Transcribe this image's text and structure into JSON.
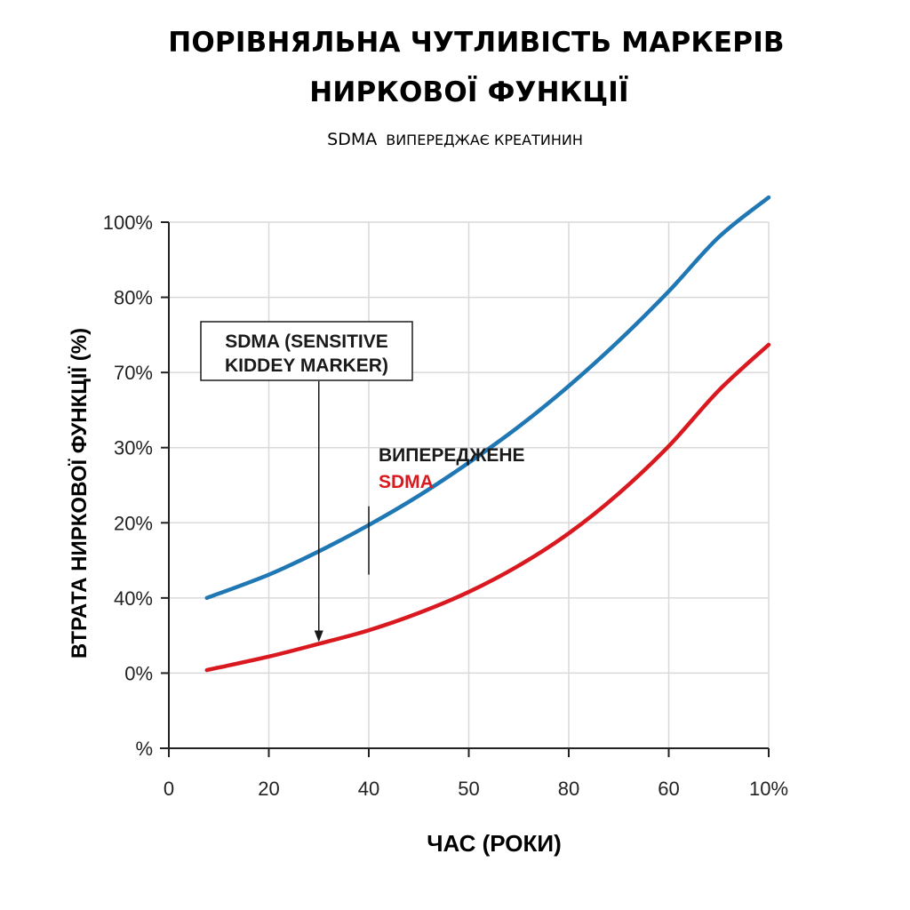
{
  "title": {
    "line1": "ПОРІВНЯЛЬНА ЧУТЛИВІСТЬ МАРКЕРІВ",
    "line2": "НИРКОВОЇ ФУНКЦІЇ"
  },
  "subtitle": {
    "part_a": "SDMA",
    "part_b": "ВИПЕРЕДЖАЄ КРЕАТИНИН"
  },
  "colors": {
    "creatinine_line": "#1f77b4",
    "sdma_line": "#d9191f",
    "grid": "#d9d9d9",
    "axis": "#222222"
  },
  "chart_data": {
    "type": "line",
    "title": "ПОРІВНЯЛЬНА ЧУТЛИВІСТЬ МАРКЕРІВ НИРКОВОЇ ФУНКЦІЇ",
    "subtitle": "SDMA ВИПЕРЕДЖАЄ КРЕАТИНИН",
    "xlabel": "ЧАС (РОКИ)",
    "ylabel": "ВТРАТА НИРКОВОЇ ФУНКЦІЇ (%)",
    "x_tick_labels": [
      "0",
      "20",
      "40",
      "50",
      "80",
      "60",
      "10%"
    ],
    "y_tick_labels_bottom_to_top": [
      "%",
      "0%",
      "40%",
      "20%",
      "30%",
      "70%",
      "80%",
      "100%"
    ],
    "xlim": [
      0,
      6
    ],
    "ylim": [
      0,
      7
    ],
    "grid": true,
    "series": [
      {
        "name": "blue",
        "color": "#1f77b4",
        "x": [
          0.38,
          1,
          1.5,
          2,
          2.5,
          3,
          3.5,
          4,
          4.5,
          5,
          5.5,
          6
        ],
        "y": [
          2.0,
          2.31,
          2.62,
          2.97,
          3.36,
          3.8,
          4.28,
          4.82,
          5.42,
          6.08,
          6.8,
          7.33
        ]
      },
      {
        "name": "SDMA",
        "color": "#d9191f",
        "x": [
          0.38,
          1,
          1.5,
          2,
          2.5,
          3,
          3.5,
          4,
          4.5,
          5,
          5.5,
          6
        ],
        "y": [
          1.04,
          1.22,
          1.39,
          1.57,
          1.8,
          2.08,
          2.43,
          2.86,
          3.39,
          4.02,
          4.76,
          5.37
        ]
      }
    ],
    "annotations": {
      "box_line1": "SDMA (SENSITIVE",
      "box_line2": "KIDDEY MARKER)",
      "box_arrow_x": 1.5,
      "lead_label_line1": "ВИПЕРЕДЖЕНЕ",
      "lead_label_line2": "SDMA",
      "lead_bar_x": 2.0
    }
  }
}
